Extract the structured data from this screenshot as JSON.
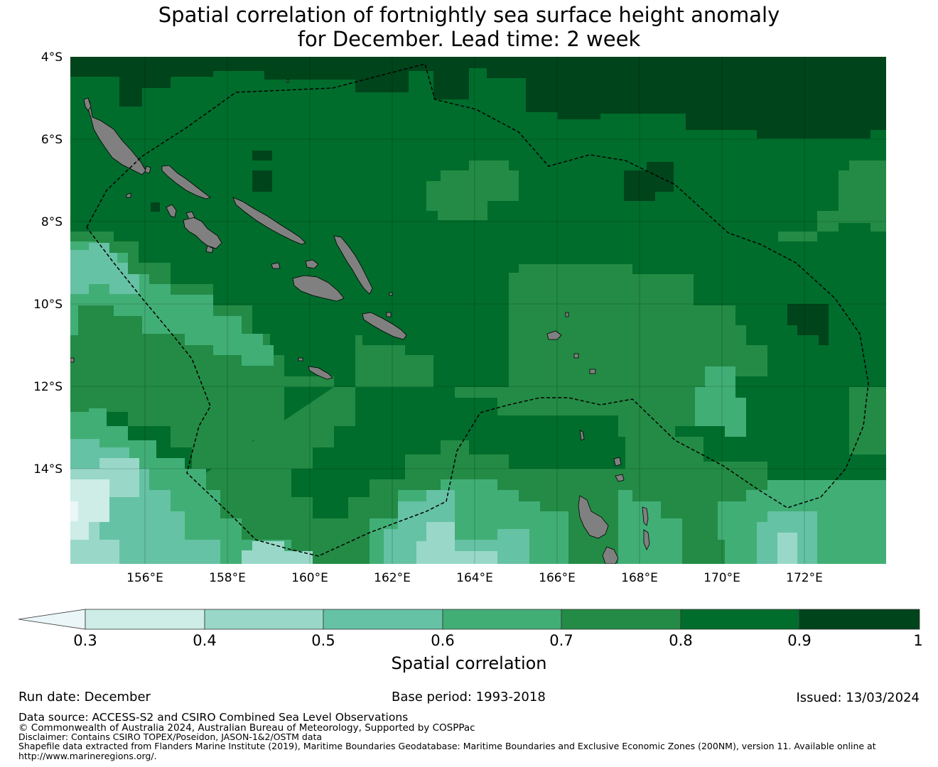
{
  "title": {
    "line1": "Spatial correlation of fortnightly sea surface height anomaly",
    "line2": "for December. Lead time: 2 week"
  },
  "map": {
    "lat_labels": [
      "4°S",
      "6°S",
      "8°S",
      "10°S",
      "12°S",
      "14°S"
    ],
    "lon_labels": [
      "156°E",
      "158°E",
      "160°E",
      "162°E",
      "164°E",
      "166°E",
      "168°E",
      "170°E",
      "172°E"
    ],
    "extent": {
      "lon_min": 154.2,
      "lon_max": 174.0,
      "lat_min": -16.3,
      "lat_max": -4.0
    },
    "land_color": "#808080",
    "boundary_style": "dashed black"
  },
  "colorbar": {
    "title": "Spatial correlation",
    "tick_labels": [
      "0.3",
      "0.4",
      "0.5",
      "0.6",
      "0.7",
      "0.8",
      "0.9",
      "1"
    ],
    "extend": "min",
    "colors": [
      "#eaf6f8",
      "#cdede6",
      "#99d8c9",
      "#66c2a4",
      "#41ae76",
      "#238b45",
      "#006d2c",
      "#00441b"
    ]
  },
  "footer": {
    "run_date": "Run date: December",
    "base_period": "Base period: 1993-2018",
    "issued": "Issued: 13/03/2024",
    "data_source": "Data source: ACCESS-S2 and CSIRO Combined Sea Level Observations",
    "copyright": "© Commonwealth of Australia 2024, Australian Bureau of Meteorology, Supported by COSPPac",
    "disclaimer": "Disclaimer: Contains CSIRO TOPEX/Poseidon, JASON-1&2/OSTM data",
    "shapefile_1": "Shapefile data extracted from Flanders Marine Institute (2019), Maritime Boundaries Geodatabase: Maritime Boundaries and Exclusive Economic Zones (200NM), version 11. Available online at",
    "shapefile_2": "http://www.marineregions.org/."
  }
}
